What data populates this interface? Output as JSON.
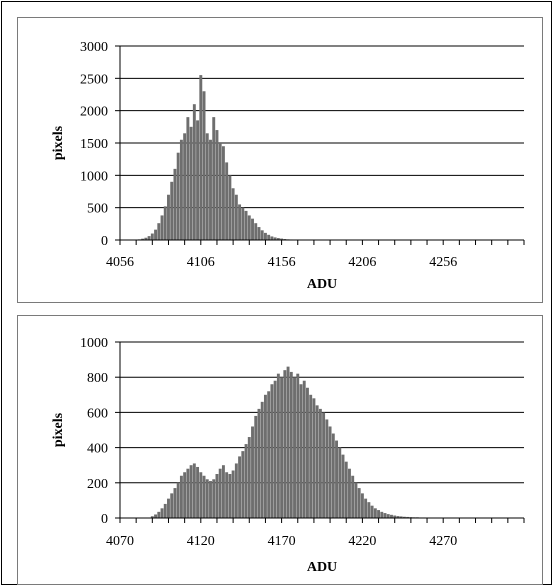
{
  "chart_data": [
    {
      "type": "bar",
      "xlabel": "ADU",
      "ylabel": "pixels",
      "ylim": [
        0,
        3000
      ],
      "yticks": [
        "0",
        "500",
        "1000",
        "1500",
        "2000",
        "2500",
        "3000"
      ],
      "xtick_labels": [
        "4056",
        "4106",
        "4156",
        "4206",
        "4256"
      ],
      "xlim": [
        4056,
        4306
      ],
      "grid": true,
      "bar_color": "#6e6e6e",
      "x": [
        4066,
        4068,
        4070,
        4072,
        4074,
        4076,
        4078,
        4080,
        4082,
        4084,
        4086,
        4088,
        4090,
        4092,
        4094,
        4096,
        4098,
        4100,
        4102,
        4104,
        4106,
        4108,
        4110,
        4112,
        4114,
        4116,
        4118,
        4120,
        4122,
        4124,
        4126,
        4128,
        4130,
        4132,
        4134,
        4136,
        4138,
        4140,
        4142,
        4144,
        4146,
        4148,
        4150,
        4152,
        4154,
        4156,
        4158,
        4160,
        4162,
        4164,
        4166,
        4168,
        4170
      ],
      "values": [
        5,
        10,
        20,
        35,
        60,
        100,
        160,
        260,
        380,
        520,
        700,
        900,
        1100,
        1350,
        1550,
        1650,
        1900,
        1750,
        2100,
        1850,
        2550,
        2300,
        1650,
        1550,
        1900,
        1700,
        1500,
        1450,
        1200,
        1000,
        800,
        700,
        550,
        500,
        450,
        380,
        330,
        260,
        200,
        150,
        110,
        80,
        55,
        40,
        30,
        22,
        15,
        10,
        8,
        5,
        4,
        3,
        2
      ]
    },
    {
      "type": "bar",
      "xlabel": "ADU",
      "ylabel": "pixels",
      "ylim": [
        0,
        1000
      ],
      "yticks": [
        "0",
        "200",
        "400",
        "600",
        "800",
        "1000"
      ],
      "xtick_labels": [
        "4070",
        "4120",
        "4170",
        "4220",
        "4270"
      ],
      "xlim": [
        4070,
        4320
      ],
      "grid": true,
      "bar_color": "#6e6e6e",
      "x": [
        4090,
        4092,
        4094,
        4096,
        4098,
        4100,
        4102,
        4104,
        4106,
        4108,
        4110,
        4112,
        4114,
        4116,
        4118,
        4120,
        4122,
        4124,
        4126,
        4128,
        4130,
        4132,
        4134,
        4136,
        4138,
        4140,
        4142,
        4144,
        4146,
        4148,
        4150,
        4152,
        4154,
        4156,
        4158,
        4160,
        4162,
        4164,
        4166,
        4168,
        4170,
        4172,
        4174,
        4176,
        4178,
        4180,
        4182,
        4184,
        4186,
        4188,
        4190,
        4192,
        4194,
        4196,
        4198,
        4200,
        4202,
        4204,
        4206,
        4208,
        4210,
        4212,
        4214,
        4216,
        4218,
        4220,
        4222,
        4224,
        4226,
        4228,
        4230,
        4232,
        4234,
        4236,
        4238,
        4240,
        4242,
        4244,
        4246,
        4248,
        4250,
        4252,
        4254,
        4256,
        4258,
        4260,
        4262,
        4264,
        4266,
        4268,
        4270,
        4272,
        4274,
        4276,
        4278,
        4280,
        4282,
        4284,
        4286,
        4288,
        4290
      ],
      "values": [
        10,
        20,
        35,
        55,
        80,
        110,
        140,
        170,
        200,
        240,
        260,
        280,
        300,
        310,
        290,
        260,
        240,
        220,
        210,
        220,
        250,
        280,
        300,
        260,
        250,
        270,
        310,
        350,
        380,
        420,
        460,
        520,
        580,
        620,
        660,
        700,
        720,
        760,
        780,
        820,
        800,
        840,
        860,
        830,
        800,
        820,
        760,
        780,
        740,
        700,
        680,
        640,
        620,
        600,
        560,
        520,
        480,
        440,
        400,
        360,
        320,
        280,
        240,
        200,
        170,
        140,
        110,
        90,
        70,
        55,
        45,
        35,
        28,
        22,
        18,
        14,
        11,
        9,
        7,
        6,
        5,
        4,
        4,
        3,
        3,
        2,
        2,
        2,
        2,
        1,
        1,
        1,
        1,
        1,
        1,
        1,
        1,
        1,
        1,
        1,
        1
      ]
    }
  ]
}
